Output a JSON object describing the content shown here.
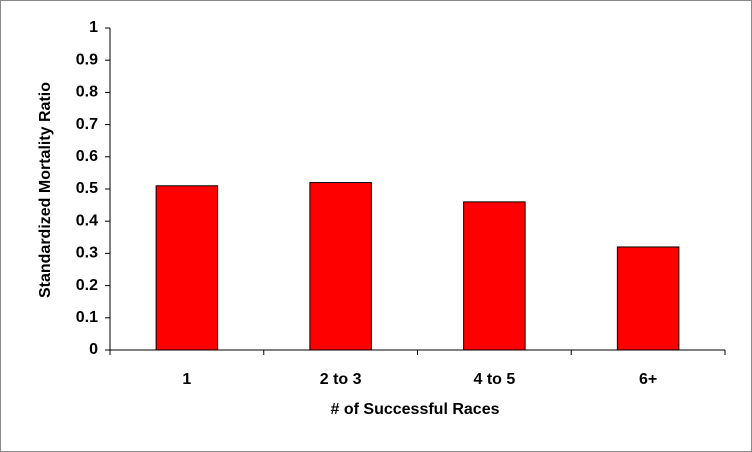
{
  "chart_data": {
    "type": "bar",
    "x_label": "# of Successful Races",
    "y_label": "Standardized Mortality Ratio",
    "categories": [
      "1",
      "2 to 3",
      "4 to 5",
      "6+"
    ],
    "values": [
      0.51,
      0.52,
      0.46,
      0.32
    ],
    "color": "#ff0000",
    "ylim": [
      0,
      1
    ],
    "yticks": [
      0,
      0.1,
      0.2,
      0.3,
      0.4,
      0.5,
      0.6,
      0.7,
      0.8,
      0.9,
      1
    ],
    "grid": false
  }
}
